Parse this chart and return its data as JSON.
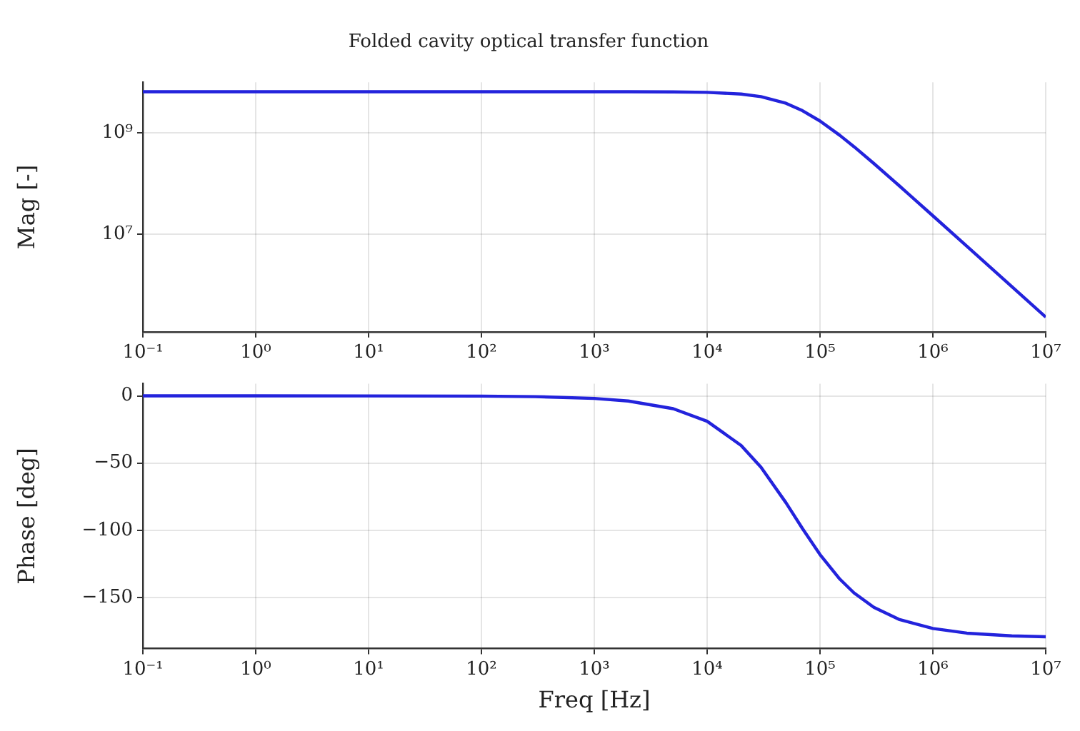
{
  "chart_data": [
    {
      "type": "line",
      "title": "Folded cavity optical transfer function",
      "ylabel": "Mag [-]",
      "log": "xy",
      "grid": true,
      "xlim": [
        0.1,
        10000000
      ],
      "ylim": [
        120000,
        10000000000
      ],
      "xticks": [
        {
          "value": 0.1,
          "label": "10⁻¹"
        },
        {
          "value": 1,
          "label": "10⁰"
        },
        {
          "value": 10,
          "label": "10¹"
        },
        {
          "value": 100,
          "label": "10²"
        },
        {
          "value": 1000,
          "label": "10³"
        },
        {
          "value": 10000,
          "label": "10⁴"
        },
        {
          "value": 100000,
          "label": "10⁵"
        },
        {
          "value": 1000000,
          "label": "10⁶"
        },
        {
          "value": 10000000,
          "label": "10⁷"
        }
      ],
      "yticks": [
        {
          "value": 10000000,
          "label": "10⁷"
        },
        {
          "value": 1000000000,
          "label": "10⁹"
        }
      ],
      "x": [
        0.1,
        1,
        10,
        100,
        300,
        1000,
        2000,
        5000,
        10000,
        20000,
        30000,
        50000,
        70000,
        100000,
        150000,
        200000,
        300000,
        500000,
        1000000,
        2000000,
        5000000,
        10000000
      ],
      "series": [
        {
          "color": "#2323dc",
          "values": [
            6500000000,
            6500000000,
            6500000000,
            6500000000,
            6500000000,
            6500000000,
            6490000000,
            6450000000,
            6320000000,
            5850000000,
            5200000000,
            3840000000,
            2750000000,
            1720000000,
            897000000,
            537000000,
            250000000,
            92300000,
            23300000,
            5850000,
            936000,
            234000
          ]
        }
      ]
    },
    {
      "type": "line",
      "xlabel": "Freq [Hz]",
      "ylabel": "Phase [deg]",
      "log": "x",
      "grid": true,
      "xlim": [
        0.1,
        10000000
      ],
      "ylim": [
        -188,
        9
      ],
      "xticks": [
        {
          "value": 0.1,
          "label": "10⁻¹"
        },
        {
          "value": 1,
          "label": "10⁰"
        },
        {
          "value": 10,
          "label": "10¹"
        },
        {
          "value": 100,
          "label": "10²"
        },
        {
          "value": 1000,
          "label": "10³"
        },
        {
          "value": 10000,
          "label": "10⁴"
        },
        {
          "value": 100000,
          "label": "10⁵"
        },
        {
          "value": 1000000,
          "label": "10⁶"
        },
        {
          "value": 10000000,
          "label": "10⁷"
        }
      ],
      "yticks": [
        {
          "value": -150,
          "label": "−150"
        },
        {
          "value": -100,
          "label": "−100"
        },
        {
          "value": -50,
          "label": "−50"
        },
        0
      ],
      "x": [
        0.1,
        1,
        10,
        100,
        300,
        1000,
        2000,
        5000,
        10000,
        20000,
        30000,
        50000,
        70000,
        100000,
        150000,
        200000,
        300000,
        500000,
        1000000,
        2000000,
        5000000,
        10000000
      ],
      "series": [
        {
          "color": "#2323dc",
          "values": [
            0,
            0,
            -0.02,
            -0.19,
            -0.57,
            -1.91,
            -3.82,
            -9.53,
            -18.9,
            -36.9,
            -53.1,
            -79.6,
            -98.8,
            -118.1,
            -136.4,
            -146.6,
            -157.4,
            -166.3,
            -173.1,
            -176.6,
            -178.6,
            -179.3
          ]
        }
      ]
    }
  ]
}
